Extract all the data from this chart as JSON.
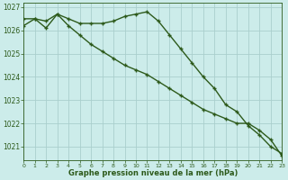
{
  "line1": {
    "x": [
      0,
      1,
      2,
      3,
      4,
      5,
      6,
      7,
      8,
      9,
      10,
      11,
      12,
      13,
      14,
      15,
      16,
      17,
      18,
      19,
      20,
      21,
      22,
      23
    ],
    "y": [
      1026.2,
      1026.5,
      1026.4,
      1026.7,
      1026.5,
      1026.3,
      1026.3,
      1026.3,
      1026.4,
      1026.6,
      1026.7,
      1026.8,
      1026.4,
      1025.8,
      1025.2,
      1024.6,
      1024.0,
      1023.5,
      1022.8,
      1022.5,
      1021.9,
      1021.5,
      1021.0,
      1020.7
    ],
    "color": "#2d5a1b",
    "linewidth": 1.0,
    "marker": "+"
  },
  "line2": {
    "x": [
      0,
      1,
      2,
      3,
      4,
      5,
      6,
      7,
      8,
      9,
      10,
      11,
      12,
      13,
      14,
      15,
      16,
      17,
      18,
      19,
      20,
      21,
      22,
      23
    ],
    "y": [
      1026.5,
      1026.5,
      1026.1,
      1026.7,
      1026.2,
      1025.8,
      1025.4,
      1025.1,
      1024.8,
      1024.5,
      1024.3,
      1024.1,
      1023.8,
      1023.5,
      1023.2,
      1022.9,
      1022.6,
      1022.4,
      1022.2,
      1022.0,
      1022.0,
      1021.7,
      1021.3,
      1020.6
    ],
    "color": "#2d5a1b",
    "linewidth": 1.0,
    "marker": "+"
  },
  "xlim": [
    0,
    23
  ],
  "ylim": [
    1020.4,
    1027.2
  ],
  "yticks": [
    1021,
    1022,
    1023,
    1024,
    1025,
    1026,
    1027
  ],
  "xticks": [
    0,
    1,
    2,
    3,
    4,
    5,
    6,
    7,
    8,
    9,
    10,
    11,
    12,
    13,
    14,
    15,
    16,
    17,
    18,
    19,
    20,
    21,
    22,
    23
  ],
  "xlabel": "Graphe pression niveau de la mer (hPa)",
  "background_color": "#ccecea",
  "grid_color": "#aacfcd",
  "text_color": "#2d5a1b",
  "axis_color": "#2d5a1b",
  "tick_color": "#2d5a1b"
}
